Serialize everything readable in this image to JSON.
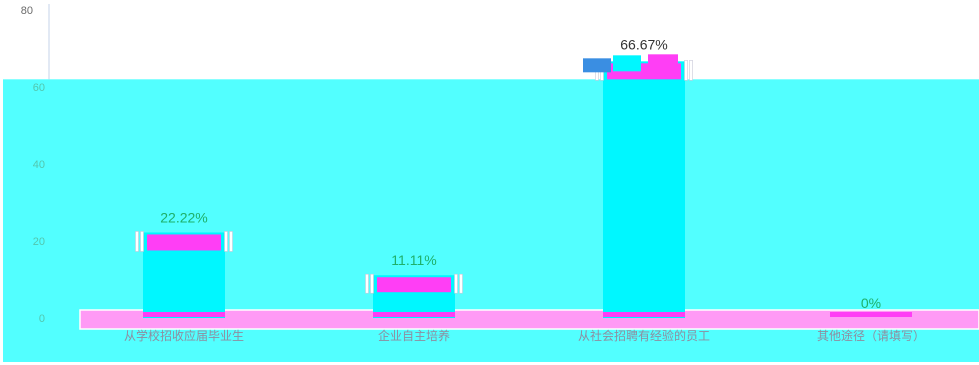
{
  "chart_data": {
    "type": "bar",
    "categories": [
      "从学校招收应届毕业生",
      "企业自主培养",
      "从社会招聘有经验的员工",
      "其他途径（请填写）"
    ],
    "values": [
      22.22,
      11.11,
      66.67,
      0
    ],
    "data_labels": [
      "22.22%",
      "11.11%",
      "66.67%",
      "0%"
    ],
    "y_ticks": [
      0,
      20,
      40,
      60,
      80
    ],
    "ylim": [
      0,
      80
    ],
    "grid": false,
    "legend": "none",
    "title": "",
    "xlabel": "",
    "ylabel": ""
  },
  "colors": {
    "background": "#ffffff",
    "cyan": "#00f7ff",
    "cyan_bg": "#52ffff",
    "magenta": "#ff3ef5",
    "pink": "#ff9af5",
    "blue_accent": "#3a8ee2",
    "axis": "#c5d3e8",
    "tick_text": "#6a6a6a",
    "tick_text_on_cyan": "#52c6ae",
    "label_green": "#1fb06a",
    "label_dark": "#333333",
    "category_text": "#8e8ea0"
  }
}
